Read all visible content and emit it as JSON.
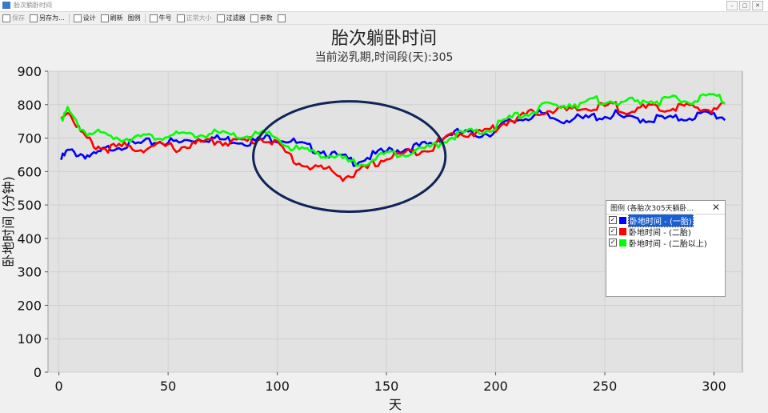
{
  "window": {
    "title": "胎次躺卧时间"
  },
  "toolbar": {
    "items": [
      {
        "label": "保存",
        "disabled": true
      },
      {
        "label": "另存为...",
        "disabled": false
      },
      {
        "label": "设计",
        "disabled": false
      },
      {
        "label": "刷新",
        "disabled": false
      },
      {
        "label": "图例",
        "disabled": false
      },
      {
        "label": "牛号",
        "disabled": false
      },
      {
        "label": "正常大小",
        "disabled": true
      },
      {
        "label": "过滤器",
        "disabled": false
      },
      {
        "label": "参数",
        "disabled": false
      }
    ]
  },
  "legend": {
    "title": "图例 (各胎次305天躺卧...",
    "items": [
      {
        "label": "卧地时间 - (一胎)",
        "color": "#0000ff",
        "checked": true,
        "selected": true
      },
      {
        "label": "卧地时间 - (二胎)",
        "color": "#ff0000",
        "checked": true,
        "selected": false
      },
      {
        "label": "卧地时间 - (二胎以上)",
        "color": "#00ff00",
        "checked": true,
        "selected": false
      }
    ]
  },
  "chart_data": {
    "type": "line",
    "title": "胎次躺卧时间",
    "subtitle": "当前泌乳期,时间段(天):305",
    "xlabel": "天",
    "ylabel": "卧地时间 (分钟)",
    "xlim": [
      -5,
      313
    ],
    "ylim": [
      0,
      900
    ],
    "xticks": [
      0,
      50,
      100,
      150,
      200,
      250,
      300
    ],
    "yticks": [
      0,
      100,
      200,
      300,
      400,
      500,
      600,
      700,
      800,
      900
    ],
    "grid": true,
    "legend_position": "right",
    "annotation": "ellipse around days 90-175",
    "series": [
      {
        "name": "卧地时间 - (一胎)",
        "color": "#0000ff",
        "x": [
          1,
          4,
          8,
          12,
          16,
          20,
          25,
          30,
          35,
          40,
          45,
          50,
          55,
          60,
          65,
          70,
          75,
          80,
          85,
          90,
          95,
          100,
          105,
          110,
          115,
          120,
          125,
          130,
          135,
          140,
          145,
          150,
          155,
          160,
          165,
          170,
          175,
          180,
          185,
          190,
          195,
          200,
          205,
          210,
          215,
          220,
          225,
          230,
          235,
          240,
          245,
          250,
          255,
          260,
          265,
          270,
          275,
          280,
          285,
          290,
          295,
          300,
          305
        ],
        "y": [
          635,
          660,
          655,
          650,
          645,
          660,
          675,
          680,
          680,
          685,
          690,
          690,
          685,
          695,
          700,
          700,
          695,
          695,
          690,
          690,
          700,
          700,
          695,
          680,
          670,
          665,
          650,
          640,
          630,
          640,
          650,
          660,
          665,
          670,
          675,
          680,
          700,
          715,
          715,
          710,
          715,
          720,
          745,
          755,
          765,
          770,
          760,
          755,
          760,
          755,
          765,
          765,
          770,
          755,
          760,
          755,
          760,
          755,
          760,
          765,
          770,
          770,
          760
        ]
      },
      {
        "name": "卧地时间 - (二胎)",
        "color": "#ff0000",
        "x": [
          1,
          4,
          8,
          12,
          16,
          20,
          25,
          30,
          35,
          40,
          45,
          50,
          55,
          60,
          65,
          70,
          75,
          80,
          85,
          90,
          95,
          100,
          105,
          110,
          115,
          120,
          125,
          130,
          135,
          140,
          145,
          150,
          155,
          160,
          165,
          170,
          175,
          180,
          185,
          190,
          195,
          200,
          205,
          210,
          215,
          220,
          225,
          230,
          235,
          240,
          245,
          250,
          255,
          260,
          265,
          270,
          275,
          280,
          285,
          290,
          295,
          300,
          305
        ],
        "y": [
          760,
          785,
          740,
          700,
          680,
          670,
          670,
          675,
          670,
          670,
          675,
          675,
          670,
          680,
          685,
          690,
          690,
          690,
          690,
          695,
          700,
          680,
          650,
          625,
          615,
          610,
          600,
          585,
          590,
          605,
          625,
          640,
          650,
          655,
          665,
          670,
          690,
          710,
          715,
          715,
          720,
          730,
          750,
          760,
          770,
          780,
          785,
          785,
          780,
          790,
          790,
          795,
          795,
          785,
          785,
          790,
          785,
          790,
          795,
          790,
          785,
          790,
          800
        ]
      },
      {
        "name": "卧地时间 - (二胎以上)",
        "color": "#00ff00",
        "x": [
          1,
          4,
          8,
          12,
          16,
          20,
          25,
          30,
          35,
          40,
          45,
          50,
          55,
          60,
          65,
          70,
          75,
          80,
          85,
          90,
          95,
          100,
          105,
          110,
          115,
          120,
          125,
          130,
          135,
          140,
          145,
          150,
          155,
          160,
          165,
          170,
          175,
          180,
          185,
          190,
          195,
          200,
          205,
          210,
          215,
          220,
          225,
          230,
          235,
          240,
          245,
          250,
          255,
          260,
          265,
          270,
          275,
          280,
          285,
          290,
          295,
          300,
          305
        ],
        "y": [
          760,
          780,
          745,
          720,
          715,
          710,
          705,
          700,
          705,
          700,
          705,
          710,
          705,
          710,
          710,
          715,
          710,
          705,
          705,
          710,
          710,
          700,
          675,
          665,
          660,
          655,
          645,
          635,
          625,
          630,
          640,
          650,
          655,
          660,
          665,
          670,
          690,
          705,
          715,
          715,
          720,
          735,
          755,
          765,
          775,
          790,
          795,
          800,
          805,
          800,
          810,
          815,
          810,
          805,
          810,
          815,
          810,
          815,
          810,
          815,
          820,
          825,
          815
        ]
      }
    ]
  }
}
